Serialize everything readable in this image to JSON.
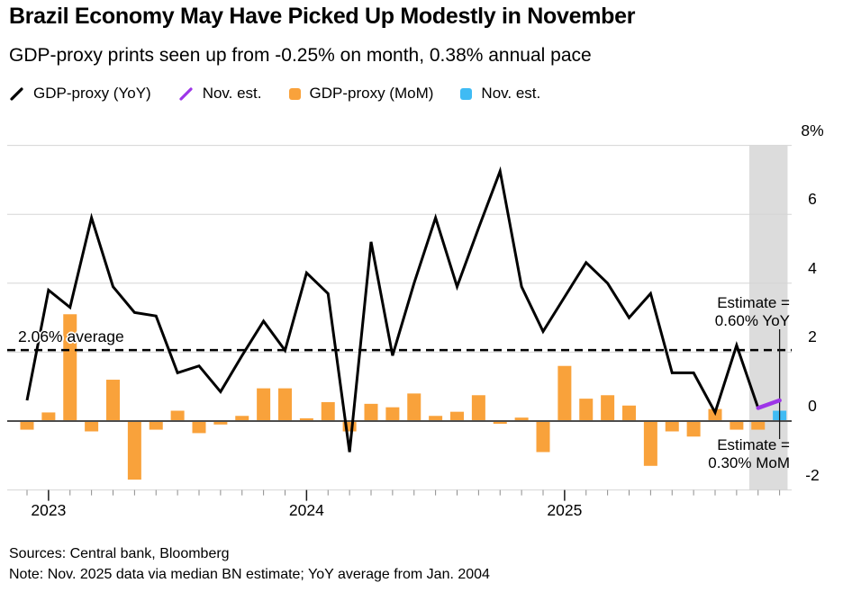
{
  "header": {
    "title": "Brazil Economy May Have Picked Up Modestly in November",
    "subtitle": "GDP-proxy prints seen up from -0.25% on month, 0.38% annual pace"
  },
  "legend": {
    "items": [
      {
        "label": "GDP-proxy (YoY)",
        "icon": "black-slash-icon",
        "color": "#000000"
      },
      {
        "label": "Nov. est.",
        "icon": "purple-slash-icon",
        "color": "#9D35E8"
      },
      {
        "label": "GDP-proxy (MoM)",
        "icon": "orange-square-icon",
        "color": "#F9A23B"
      },
      {
        "label": "Nov. est.",
        "icon": "blue-square-icon",
        "color": "#3FBBF4"
      }
    ]
  },
  "annotations": {
    "average": "2.06% average",
    "yoy_line1": "Estimate =",
    "yoy_line2": "0.60% YoY",
    "mom_line1": "Estimate =",
    "mom_line2": "0.30% MoM"
  },
  "footer": {
    "sources": "Sources: Central bank, Bloomberg",
    "note": "Note: Nov. 2025 data via median BN estimate; YoY average from Jan. 2004"
  },
  "chart_data": {
    "type": "line+bar",
    "months": [
      "Dec 2022",
      "Jan 2023",
      "Feb 2023",
      "Mar 2023",
      "Apr 2023",
      "May 2023",
      "Jun 2023",
      "Jul 2023",
      "Aug 2023",
      "Sep 2023",
      "Oct 2023",
      "Nov 2023",
      "Dec 2023",
      "Jan 2024",
      "Feb 2024",
      "Mar 2024",
      "Apr 2024",
      "May 2024",
      "Jun 2024",
      "Jul 2024",
      "Aug 2024",
      "Sep 2024",
      "Oct 2024",
      "Nov 2024",
      "Dec 2024",
      "Jan 2025",
      "Feb 2025",
      "Mar 2025",
      "Apr 2025",
      "May 2025",
      "Jun 2025",
      "Jul 2025",
      "Aug 2025",
      "Sep 2025",
      "Oct 2025",
      "Nov 2025"
    ],
    "series": [
      {
        "name": "GDP-proxy (YoY)",
        "type": "line",
        "color": "#000000",
        "values": [
          0.6,
          3.8,
          3.3,
          5.9,
          3.9,
          3.15,
          3.05,
          1.4,
          1.6,
          0.85,
          1.9,
          2.9,
          2.05,
          4.3,
          3.7,
          -0.9,
          5.2,
          1.9,
          4.0,
          5.9,
          3.9,
          5.6,
          7.25,
          3.9,
          2.6,
          3.6,
          4.6,
          4.0,
          3.0,
          3.7,
          1.4,
          1.4,
          0.25,
          2.2,
          0.38,
          null
        ]
      },
      {
        "name": "GDP-proxy (MoM)",
        "type": "bar",
        "color": "#F9A23B",
        "values": [
          -0.25,
          0.25,
          3.1,
          -0.3,
          1.2,
          -1.7,
          -0.25,
          0.3,
          -0.35,
          -0.1,
          0.15,
          0.95,
          0.95,
          0.08,
          0.55,
          -0.3,
          0.5,
          0.4,
          0.8,
          0.15,
          0.27,
          0.75,
          -0.08,
          0.1,
          -0.9,
          1.6,
          0.65,
          0.75,
          0.45,
          -1.3,
          -0.3,
          -0.45,
          0.35,
          -0.25,
          -0.25,
          null
        ]
      }
    ],
    "yoy_estimate": {
      "month": "Nov 2025",
      "from_index": 34,
      "from_value": 0.38,
      "to_index": 35,
      "to_value": 0.6,
      "color": "#9D35E8"
    },
    "mom_estimate": {
      "month": "Nov 2025",
      "index": 35,
      "value": 0.3,
      "color": "#3FBBF4"
    },
    "average_line": {
      "value": 2.06,
      "style": "dashed",
      "color": "#000000"
    },
    "ylim": [
      -2,
      8
    ],
    "y_ticks": [
      {
        "v": 8,
        "label": "8%"
      },
      {
        "v": 6,
        "label": "6"
      },
      {
        "v": 4,
        "label": "4"
      },
      {
        "v": 2,
        "label": "2"
      },
      {
        "v": 0,
        "label": "0"
      },
      {
        "v": -2,
        "label": "-2"
      }
    ],
    "x_ticks": [
      {
        "i": 1,
        "label": "2023"
      },
      {
        "i": 13,
        "label": "2024"
      },
      {
        "i": 25,
        "label": "2025"
      }
    ],
    "highlight_band": {
      "from_month": "Oct 2025",
      "to_month": "Nov 2025",
      "color": "#DCDCDC"
    },
    "grid": "horizontal",
    "legend_position": "top"
  }
}
